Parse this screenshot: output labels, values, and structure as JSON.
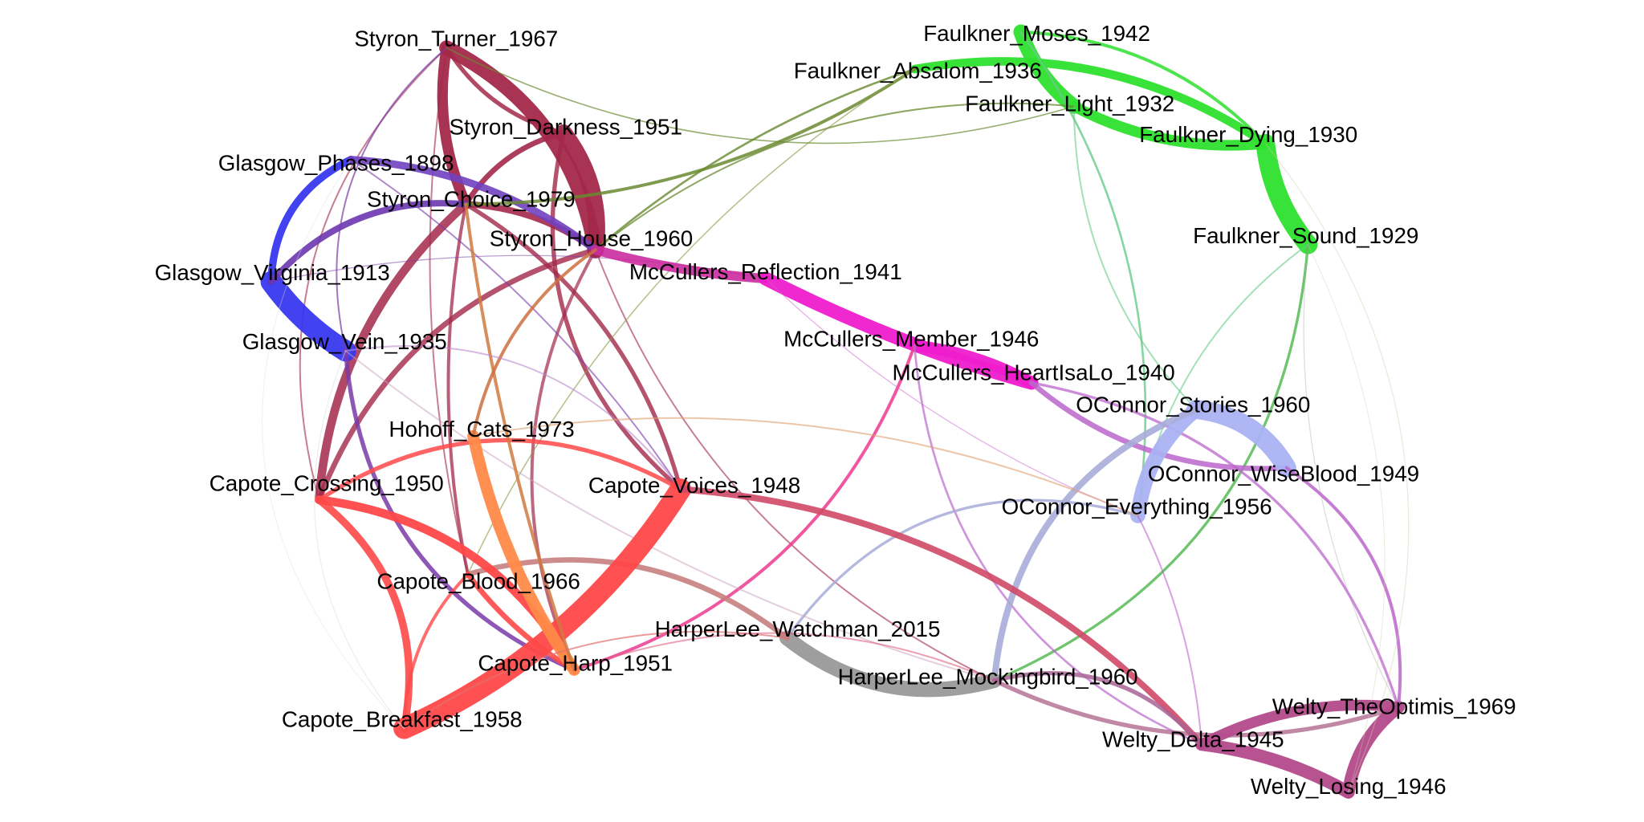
{
  "nodes": [
    {
      "label": "Styron_Turner_1967"
    },
    {
      "label": "Faulkner_Moses_1942"
    },
    {
      "label": "Faulkner_Absalom_1936"
    },
    {
      "label": "Styron_Darkness_1951"
    },
    {
      "label": "Faulkner_Light_1932"
    },
    {
      "label": "Faulkner_Dying_1930"
    },
    {
      "label": "Glasgow_Phases_1898"
    },
    {
      "label": "Styron_Choice_1979"
    },
    {
      "label": "Styron_House_1960"
    },
    {
      "label": "Faulkner_Sound_1929"
    },
    {
      "label": "Glasgow_Virginia_1913"
    },
    {
      "label": "McCullers_Reflection_1941"
    },
    {
      "label": "Glasgow_Vein_1935"
    },
    {
      "label": "McCullers_Member_1946"
    },
    {
      "label": "McCullers_HeartIsaLo_1940"
    },
    {
      "label": "OConnor_Stories_1960"
    },
    {
      "label": "Hohoff_Cats_1973"
    },
    {
      "label": "OConnor_WiseBlood_1949"
    },
    {
      "label": "Capote_Crossing_1950"
    },
    {
      "label": "Capote_Voices_1948"
    },
    {
      "label": "OConnor_Everything_1956"
    },
    {
      "label": "Capote_Blood_1966"
    },
    {
      "label": "HarperLee_Watchman_2015"
    },
    {
      "label": "Capote_Harp_1951"
    },
    {
      "label": "HarperLee_Mockingbird_1960"
    },
    {
      "label": "Capote_Breakfast_1958"
    },
    {
      "label": "Welty_TheOptimis_1969"
    },
    {
      "label": "Welty_Delta_1945"
    },
    {
      "label": "Welty_Losing_1946"
    }
  ]
}
